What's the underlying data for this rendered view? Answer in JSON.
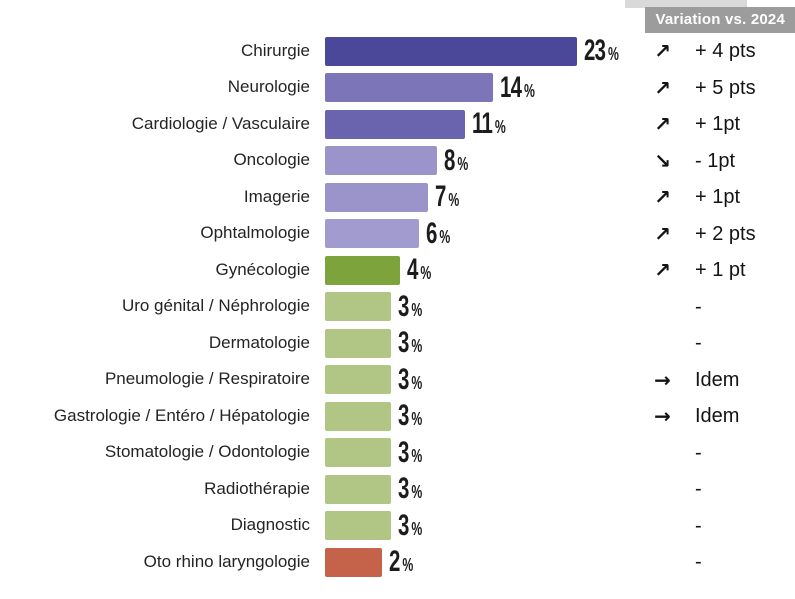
{
  "header": {
    "legend_badge": "Variation vs. 2024"
  },
  "icons": {
    "up": "↗",
    "down": "↘",
    "flat": "→"
  },
  "colors": {
    "badge_background": "#9c9c9c",
    "badge_text": "#ffffff",
    "top_strip": "#d9d9d9",
    "purple_dark": "#4c4899",
    "purple_mid": "#7c76b9",
    "purple_mid2": "#6a63ae",
    "purple_light": "#9b94ca",
    "green_dark": "#7ca33c",
    "green_light": "#b1c584",
    "orange": "#c5624a"
  },
  "chart_data": {
    "type": "bar",
    "orientation": "horizontal",
    "title": "",
    "value_unit": "%",
    "legend_badge": "Variation vs. 2024",
    "grid": false,
    "xlim": [
      0,
      25
    ],
    "categories": [
      "Chirurgie",
      "Neurologie",
      "Cardiologie / Vasculaire",
      "Oncologie",
      "Imagerie",
      "Ophtalmologie",
      "Gynécologie",
      "Uro génital / Néphrologie",
      "Dermatologie",
      "Pneumologie / Respiratoire",
      "Gastrologie / Entéro / Hépatologie",
      "Stomatologie / Odontologie",
      "Radiothérapie",
      "Diagnostic",
      "Oto rhino laryngologie"
    ],
    "values": [
      23,
      14,
      11,
      8,
      7,
      6,
      4,
      3,
      3,
      3,
      3,
      3,
      3,
      3,
      2
    ],
    "value_labels": [
      "23",
      "14",
      "11",
      "8",
      "7",
      "6",
      "4",
      "3",
      "3",
      "3",
      "3",
      "3",
      "3",
      "3",
      "2"
    ],
    "bar_colors": [
      "#4c4899",
      "#7c76b9",
      "#6a63ae",
      "#9b94ca",
      "#9b94ca",
      "#a29bcf",
      "#7ca33c",
      "#b1c584",
      "#b1c584",
      "#b1c584",
      "#b1c584",
      "#b1c584",
      "#b1c584",
      "#b1c584",
      "#c5624a"
    ],
    "variations": [
      {
        "trend": "up",
        "text": "+ 4 pts"
      },
      {
        "trend": "up",
        "text": "+ 5 pts"
      },
      {
        "trend": "up",
        "text": "+ 1pt"
      },
      {
        "trend": "down",
        "text": "- 1pt"
      },
      {
        "trend": "up",
        "text": "+ 1pt"
      },
      {
        "trend": "up",
        "text": "+ 2 pts"
      },
      {
        "trend": "up",
        "text": "+ 1 pt"
      },
      {
        "trend": "none",
        "text": "-"
      },
      {
        "trend": "none",
        "text": "-"
      },
      {
        "trend": "flat",
        "text": "Idem"
      },
      {
        "trend": "flat",
        "text": "Idem"
      },
      {
        "trend": "none",
        "text": "-"
      },
      {
        "trend": "none",
        "text": "-"
      },
      {
        "trend": "none",
        "text": "-"
      },
      {
        "trend": "none",
        "text": "-"
      }
    ]
  }
}
